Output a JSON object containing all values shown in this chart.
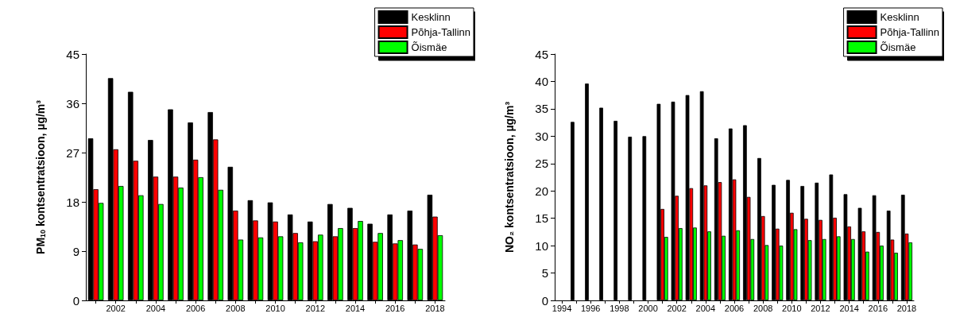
{
  "chart_data": [
    {
      "type": "bar",
      "ylabel": "PM$_{10}$ kontsentratsioon, µg/m³",
      "categories": [
        null,
        "2002",
        null,
        "2004",
        null,
        "2006",
        null,
        "2008",
        null,
        "2010",
        null,
        "2012",
        null,
        "2014",
        null,
        "2016",
        null,
        "2018"
      ],
      "series": [
        {
          "name": "Kesklinn",
          "color": "#000000",
          "values": [
            29.6,
            40.6,
            38.1,
            29.3,
            34.9,
            32.5,
            34.4,
            24.4,
            18.3,
            17.9,
            15.7,
            14.4,
            17.6,
            16.9,
            14.0,
            15.7,
            16.4,
            19.3
          ]
        },
        {
          "name": "Põhja-Tallinn",
          "color": "#ff0000",
          "values": [
            20.3,
            27.6,
            25.5,
            22.6,
            22.6,
            25.7,
            29.4,
            16.4,
            14.6,
            14.4,
            12.3,
            10.8,
            11.7,
            13.2,
            10.7,
            10.4,
            10.2,
            15.3
          ]
        },
        {
          "name": "Õismäe",
          "color": "#00ff00",
          "values": [
            17.8,
            20.9,
            19.2,
            17.6,
            20.6,
            22.5,
            20.2,
            11.1,
            11.5,
            11.7,
            10.6,
            12.0,
            13.2,
            14.5,
            12.3,
            11.0,
            9.4,
            11.9
          ]
        }
      ],
      "ylim": [
        0,
        45
      ],
      "yticks": [
        0,
        9,
        18,
        27,
        36,
        45
      ],
      "grid": false,
      "legend": "top right"
    },
    {
      "type": "bar",
      "ylabel": "NO₂ kontsentratsioon, µg/m³",
      "categories": [
        "1994",
        null,
        "1996",
        null,
        "1998",
        null,
        "2000",
        null,
        "2002",
        null,
        "2004",
        null,
        "2006",
        null,
        "2008",
        null,
        "2010",
        null,
        "2012",
        null,
        "2014",
        null,
        "2016",
        null,
        "2018"
      ],
      "series": [
        {
          "name": "Kesklinn",
          "color": "#000000",
          "values": [
            null,
            32.6,
            39.6,
            35.2,
            32.8,
            29.9,
            30.0,
            35.9,
            36.3,
            37.5,
            38.2,
            29.6,
            31.4,
            32.0,
            26.0,
            21.1,
            22.0,
            20.9,
            21.5,
            23.0,
            19.4,
            16.9,
            19.2,
            16.4,
            19.3
          ]
        },
        {
          "name": "Põhja-Tallinn",
          "color": "#ff0000",
          "values": [
            null,
            null,
            null,
            null,
            null,
            null,
            null,
            16.7,
            19.1,
            20.5,
            21.0,
            21.6,
            22.1,
            18.9,
            15.4,
            13.1,
            16.0,
            14.9,
            14.7,
            15.1,
            13.5,
            12.6,
            12.5,
            11.1,
            12.2
          ]
        },
        {
          "name": "Õismäe",
          "color": "#00ff00",
          "values": [
            null,
            null,
            null,
            null,
            null,
            null,
            null,
            11.6,
            13.2,
            13.3,
            12.6,
            11.8,
            12.8,
            11.2,
            10.1,
            10.0,
            13.0,
            11.0,
            11.2,
            11.7,
            11.2,
            8.9,
            10.0,
            8.7,
            10.6
          ]
        }
      ],
      "ylim": [
        0,
        45
      ],
      "yticks": [
        0,
        5,
        10,
        15,
        20,
        25,
        30,
        35,
        40,
        45
      ],
      "grid": false,
      "legend": "top right"
    }
  ]
}
